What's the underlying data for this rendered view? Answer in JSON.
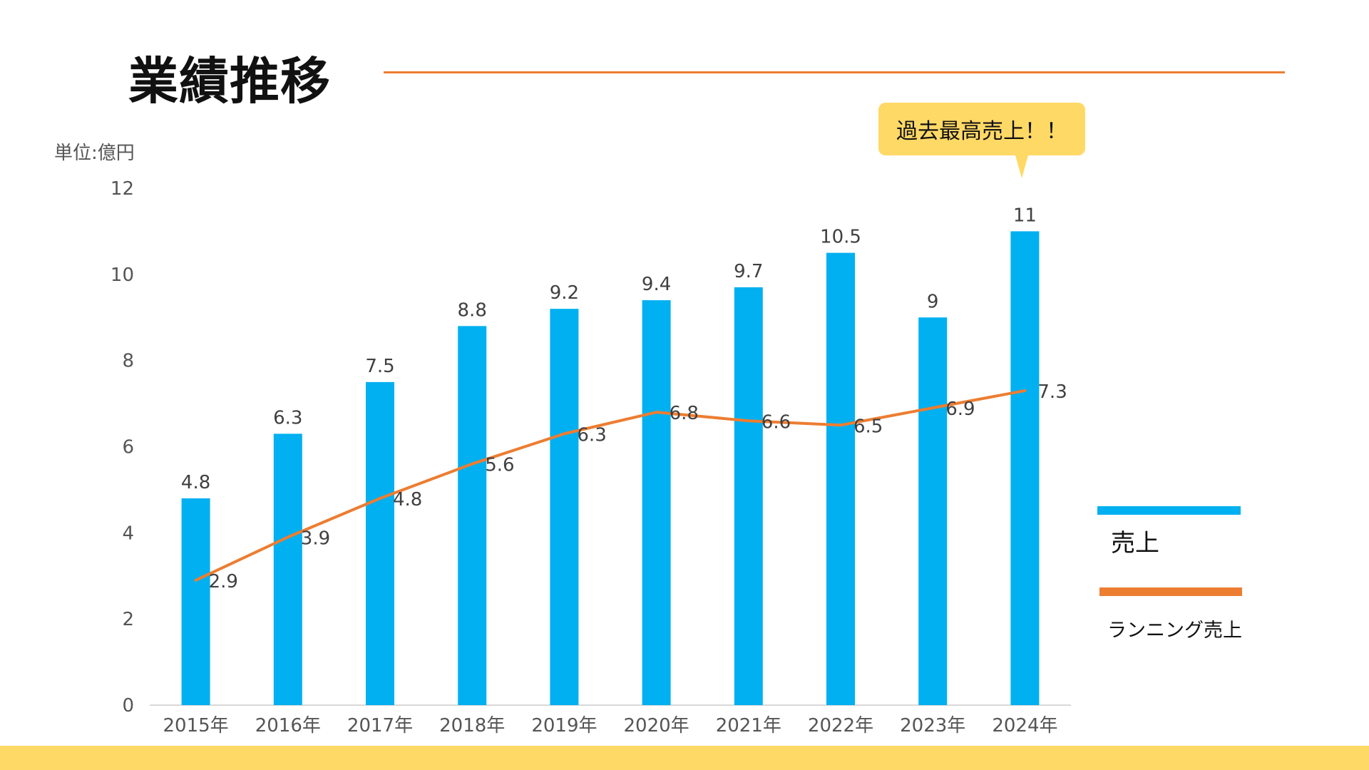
{
  "slide": {
    "title": "業績推移",
    "unit_label": "単位:億円",
    "callout_text": "過去最高売上！！"
  },
  "colors": {
    "bar": "#00b0f0",
    "line": "#ed7d31",
    "title_rule": "#ed7d31",
    "callout": "#ffd966",
    "footer": "#ffd966"
  },
  "chart_data": {
    "type": "bar",
    "categories": [
      "2015年",
      "2016年",
      "2017年",
      "2018年",
      "2019年",
      "2020年",
      "2021年",
      "2022年",
      "2023年",
      "2024年"
    ],
    "series": [
      {
        "name": "売上",
        "type": "bar",
        "values": [
          4.8,
          6.3,
          7.5,
          8.8,
          9.2,
          9.4,
          9.7,
          10.5,
          9,
          11
        ]
      },
      {
        "name": "ランニング売上",
        "type": "line",
        "values": [
          2.9,
          3.9,
          4.8,
          5.6,
          6.3,
          6.8,
          6.6,
          6.5,
          6.9,
          7.3
        ]
      }
    ],
    "ylim": [
      0,
      12
    ],
    "yticks": [
      "0",
      "2",
      "4",
      "6",
      "8",
      "10",
      "12"
    ],
    "grid": false,
    "legend_position": "right"
  }
}
